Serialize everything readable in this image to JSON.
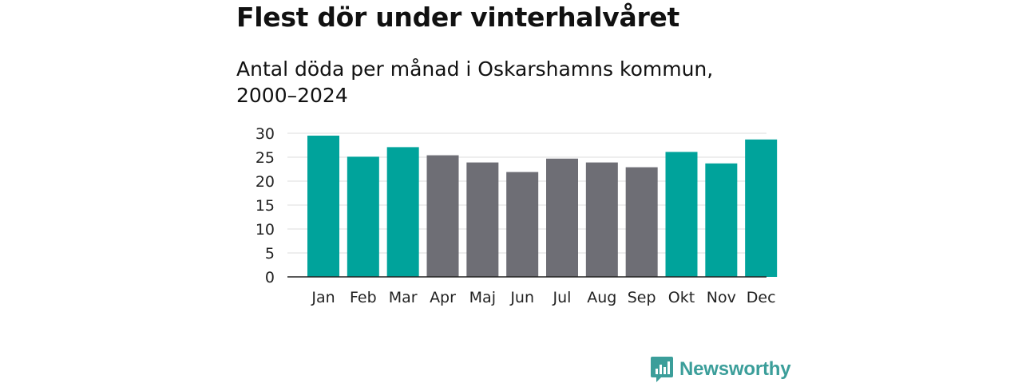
{
  "header": {
    "title": "Flest dör under vinterhalvåret",
    "subtitle": "Antal döda per månad i Oskarshamns kommun, 2000–2024"
  },
  "chart_data": {
    "type": "bar",
    "title": "Flest dör under vinterhalvåret",
    "subtitle": "Antal döda per månad i Oskarshamns kommun, 2000–2024",
    "xlabel": "",
    "ylabel": "",
    "categories": [
      "Jan",
      "Feb",
      "Mar",
      "Apr",
      "Maj",
      "Jun",
      "Jul",
      "Aug",
      "Sep",
      "Okt",
      "Nov",
      "Dec"
    ],
    "values": [
      29.5,
      25.1,
      27.1,
      25.4,
      23.9,
      21.9,
      24.7,
      23.9,
      22.9,
      26.1,
      23.7,
      28.7
    ],
    "highlight": [
      true,
      true,
      true,
      false,
      false,
      false,
      false,
      false,
      false,
      true,
      true,
      true
    ],
    "ylim": [
      0,
      30
    ],
    "yticks": [
      0,
      5,
      10,
      15,
      20,
      25,
      30
    ],
    "grid": true,
    "colors": {
      "winter": "#00a39b",
      "summer": "#6e6e75",
      "grid": "#dddddd",
      "axis": "#222222"
    }
  },
  "branding": {
    "logo_text": "Newsworthy",
    "logo_color": "#3b9e9a",
    "icon": "bar-chart-bubble-icon"
  }
}
